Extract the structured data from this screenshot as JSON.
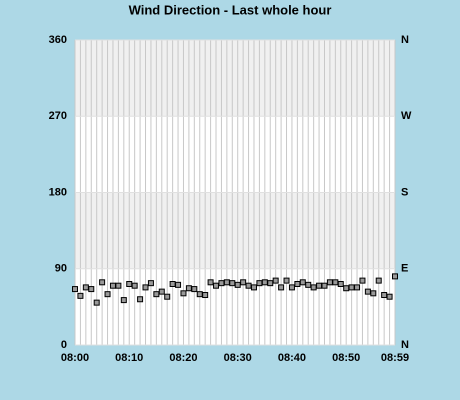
{
  "chart_data": {
    "type": "scatter",
    "title": "Wind Direction - Last whole hour",
    "x": [
      0,
      1,
      2,
      3,
      4,
      5,
      6,
      7,
      8,
      9,
      10,
      11,
      12,
      13,
      14,
      15,
      16,
      17,
      18,
      19,
      20,
      21,
      22,
      23,
      24,
      25,
      26,
      27,
      28,
      29,
      30,
      31,
      32,
      33,
      34,
      35,
      36,
      37,
      38,
      39,
      40,
      41,
      42,
      43,
      44,
      45,
      46,
      47,
      48,
      49,
      50,
      51,
      52,
      53,
      54,
      55,
      56,
      57,
      58,
      59
    ],
    "series": [
      {
        "name": "Wind Direction",
        "color": "#999999",
        "values": [
          66,
          58,
          68,
          66,
          50,
          74,
          60,
          70,
          70,
          53,
          72,
          70,
          54,
          68,
          73,
          60,
          63,
          57,
          72,
          71,
          61,
          67,
          66,
          60,
          59,
          74,
          70,
          73,
          74,
          73,
          71,
          74,
          70,
          68,
          73,
          74,
          73,
          76,
          68,
          76,
          68,
          72,
          74,
          71,
          68,
          70,
          70,
          74,
          74,
          72,
          67,
          68,
          68,
          76,
          63,
          61,
          76,
          59,
          57,
          81
        ]
      }
    ],
    "xlim": [
      0,
      59
    ],
    "xticks": [
      {
        "value": 0,
        "label": "08:00"
      },
      {
        "value": 10,
        "label": "08:10"
      },
      {
        "value": 20,
        "label": "08:20"
      },
      {
        "value": 30,
        "label": "08:30"
      },
      {
        "value": 40,
        "label": "08:40"
      },
      {
        "value": 50,
        "label": "08:50"
      },
      {
        "value": 59,
        "label": "08:59"
      }
    ],
    "ylim": [
      0,
      360
    ],
    "yticks": [
      0,
      90,
      180,
      270,
      360
    ],
    "y2lim": [
      0,
      360
    ],
    "y2ticks": [
      {
        "value": 0,
        "label": "N"
      },
      {
        "value": 90,
        "label": "E"
      },
      {
        "value": 180,
        "label": "S"
      },
      {
        "value": 270,
        "label": "W"
      },
      {
        "value": 360,
        "label": "N"
      }
    ],
    "grid": true
  }
}
